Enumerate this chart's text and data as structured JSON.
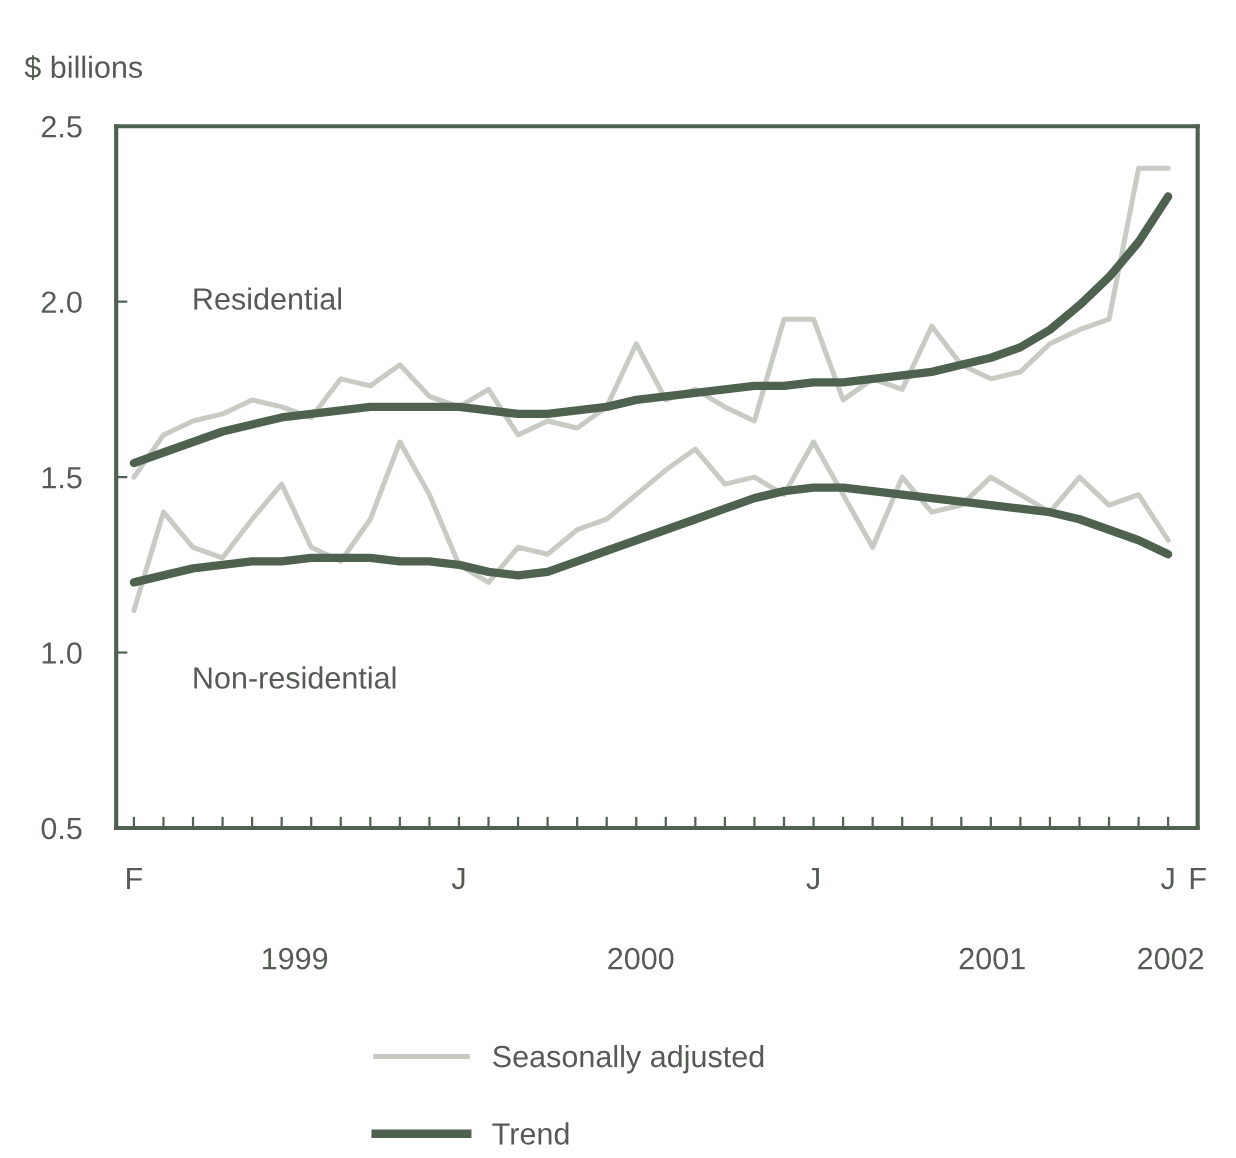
{
  "chart_data": {
    "type": "line",
    "ylabel": "$ billions",
    "categories": [
      "F",
      null,
      null,
      null,
      null,
      null,
      null,
      null,
      null,
      null,
      null,
      "J",
      null,
      null,
      null,
      null,
      null,
      null,
      null,
      null,
      null,
      null,
      null,
      "J",
      null,
      null,
      null,
      null,
      null,
      null,
      null,
      null,
      null,
      null,
      null,
      "J",
      "F"
    ],
    "series": [
      {
        "name": "Seasonally adjusted",
        "color": "#c8cbc4",
        "values": [
          1.5,
          1.62,
          1.66,
          1.68,
          1.72,
          1.7,
          1.67,
          1.78,
          1.76,
          1.82,
          1.73,
          1.7,
          1.75,
          1.62,
          1.66,
          1.64,
          1.7,
          1.88,
          1.72,
          1.75,
          1.7,
          1.66,
          1.95,
          1.95,
          1.72,
          1.78,
          1.75,
          1.93,
          1.82,
          1.78,
          1.8,
          1.88,
          1.92,
          1.95,
          2.38,
          2.38,
          null
        ]
      },
      {
        "color": "#c8cbc4",
        "values": [
          1.12,
          1.4,
          1.3,
          1.27,
          1.38,
          1.48,
          1.3,
          1.26,
          1.38,
          1.6,
          1.45,
          1.25,
          1.2,
          1.3,
          1.28,
          1.35,
          1.38,
          1.45,
          1.52,
          1.58,
          1.48,
          1.5,
          1.45,
          1.6,
          1.45,
          1.3,
          1.5,
          1.4,
          1.42,
          1.5,
          1.45,
          1.4,
          1.5,
          1.42,
          1.45,
          1.32,
          null
        ]
      },
      {
        "name": "Trend",
        "color": "#4f6250",
        "values": [
          1.54,
          1.57,
          1.6,
          1.63,
          1.65,
          1.67,
          1.68,
          1.69,
          1.7,
          1.7,
          1.7,
          1.7,
          1.69,
          1.68,
          1.68,
          1.69,
          1.7,
          1.72,
          1.73,
          1.74,
          1.75,
          1.76,
          1.76,
          1.77,
          1.77,
          1.78,
          1.79,
          1.8,
          1.82,
          1.84,
          1.87,
          1.92,
          1.99,
          2.07,
          2.17,
          2.3,
          null
        ]
      },
      {
        "color": "#4f6250",
        "values": [
          1.2,
          1.22,
          1.24,
          1.25,
          1.26,
          1.26,
          1.27,
          1.27,
          1.27,
          1.26,
          1.26,
          1.25,
          1.23,
          1.22,
          1.23,
          1.26,
          1.29,
          1.32,
          1.35,
          1.38,
          1.41,
          1.44,
          1.46,
          1.47,
          1.47,
          1.46,
          1.45,
          1.44,
          1.43,
          1.42,
          1.41,
          1.4,
          1.38,
          1.35,
          1.32,
          1.28,
          null
        ]
      }
    ],
    "annotations": [
      "Residential",
      "Non-residential",
      "1999",
      "2000",
      "2001",
      "2002"
    ],
    "ylim": [
      0.5,
      2.5
    ],
    "yticks": [
      0.5,
      {
        "value": 1,
        "label": "1.0"
      },
      1.5,
      {
        "value": 2,
        "label": "2.0"
      },
      2.5
    ],
    "legend": "bottom",
    "grid": false,
    "marker": "none",
    "line_style": "solid"
  }
}
